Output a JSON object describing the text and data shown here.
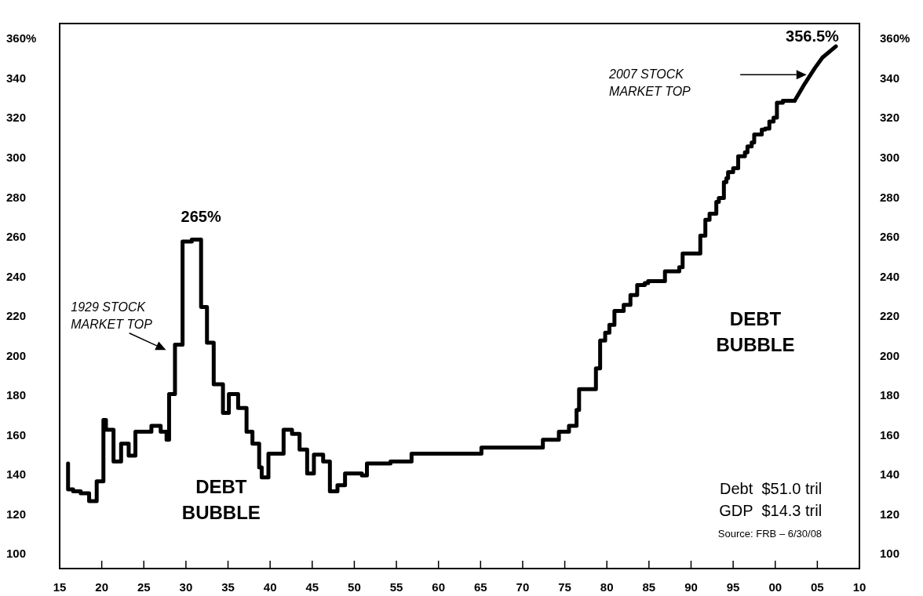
{
  "chart_data": {
    "type": "step",
    "xlim": [
      1915,
      2010
    ],
    "xticks": [
      {
        "value": 1915,
        "label": "15"
      },
      {
        "value": 1920,
        "label": "20"
      },
      {
        "value": 1925,
        "label": "25"
      },
      {
        "value": 1930,
        "label": "30"
      },
      {
        "value": 1935,
        "label": "35"
      },
      {
        "value": 1940,
        "label": "40"
      },
      {
        "value": 1945,
        "label": "45"
      },
      {
        "value": 1950,
        "label": "50"
      },
      {
        "value": 1955,
        "label": "55"
      },
      {
        "value": 1960,
        "label": "60"
      },
      {
        "value": 1965,
        "label": "65"
      },
      {
        "value": 1970,
        "label": "70"
      },
      {
        "value": 1975,
        "label": "75"
      },
      {
        "value": 1980,
        "label": "80"
      },
      {
        "value": 1985,
        "label": "85"
      },
      {
        "value": 1990,
        "label": "90"
      },
      {
        "value": 1995,
        "label": "95"
      },
      {
        "value": 2000,
        "label": "00"
      },
      {
        "value": 2005,
        "label": "05"
      },
      {
        "value": 2010,
        "label": "10"
      }
    ],
    "ylim": [
      93,
      368
    ],
    "yticks": [
      100,
      120,
      140,
      160,
      180,
      200,
      220,
      240,
      260,
      280,
      300,
      320,
      340,
      {
        "value": 360,
        "label": "360%"
      }
    ],
    "y2lim": [
      93,
      368
    ],
    "y2ticks": [
      100,
      120,
      140,
      160,
      180,
      200,
      220,
      240,
      260,
      280,
      300,
      320,
      340,
      {
        "value": 360,
        "label": "360%"
      }
    ],
    "series": [
      {
        "color": "#000000",
        "x": [
          1916.0,
          1916.6,
          1917.5,
          1918.5,
          1919.4,
          1920.2,
          1920.5,
          1921.4,
          1922.3,
          1923.2,
          1924.0,
          1925.9,
          1927.0,
          1927.7,
          1928.0,
          1928.7,
          1929.6,
          1930.7,
          1931.8,
          1932.5,
          1933.3,
          1934.4,
          1935.1,
          1936.2,
          1937.2,
          1937.9,
          1938.7,
          1939.0,
          1939.8,
          1941.6,
          1942.6,
          1943.5,
          1944.4,
          1945.2,
          1946.3,
          1947.1,
          1948.0,
          1948.9,
          1950.9,
          1951.5,
          1954.3,
          1956.8,
          1965.1,
          1972.4,
          1974.3,
          1975.5,
          1976.4,
          1976.7,
          1978.7,
          1979.2,
          1979.8,
          1980.3,
          1980.9,
          1982.0,
          1982.8,
          1983.6,
          1984.5,
          1984.9,
          1986.9,
          1988.6,
          1989.0,
          1991.1,
          1991.7,
          1992.2,
          1993.0,
          1993.3,
          1993.9,
          1994.2,
          1994.4,
          1995.0,
          1995.6,
          1996.4,
          1996.7,
          1997.2,
          1997.5,
          1998.4,
          1998.8,
          1999.3,
          1999.8,
          2000.2,
          2000.9,
          2001.6,
          2002.3
        ],
        "values": [
          146,
          133,
          132,
          131,
          127,
          137,
          168,
          163,
          147,
          156,
          150,
          162,
          165,
          162,
          158,
          181,
          206,
          258,
          259,
          225,
          207,
          186,
          171.5,
          181,
          174,
          162,
          156,
          144,
          139,
          151,
          163,
          161,
          153,
          141,
          150.5,
          147,
          132,
          135,
          141,
          140,
          146,
          147,
          151,
          154,
          158,
          162,
          165,
          173,
          183.5,
          194,
          208,
          212,
          216,
          223,
          226,
          231,
          236,
          237,
          238,
          243,
          245,
          252,
          261,
          269,
          272,
          278,
          280,
          288,
          290,
          293,
          295,
          301,
          303,
          306,
          308,
          312,
          314.5,
          315,
          318.5,
          320.5,
          328,
          329,
          329
        ]
      },
      {
        "type": "line",
        "color": "#000000",
        "x": [
          2002.3,
          2003.5,
          2004.7,
          2005.6,
          2007.2
        ],
        "values": [
          329,
          337.6,
          345.5,
          350.8,
          356.5
        ]
      }
    ],
    "annotations": [
      {
        "text": "265%",
        "x": 1931.8,
        "y": 259
      },
      {
        "text": "356.5%",
        "x": 2007.2,
        "y": 356.5
      },
      "1929 STOCK\nMARKET TOP",
      "2007 STOCK\nMARKET TOP",
      "DEBT\nBUBBLE",
      "DEBT\nBUBBLE",
      "Debt  $51.0 tril",
      "GDP  $14.3 tril",
      "Source: FRB – 6/30/08"
    ]
  }
}
